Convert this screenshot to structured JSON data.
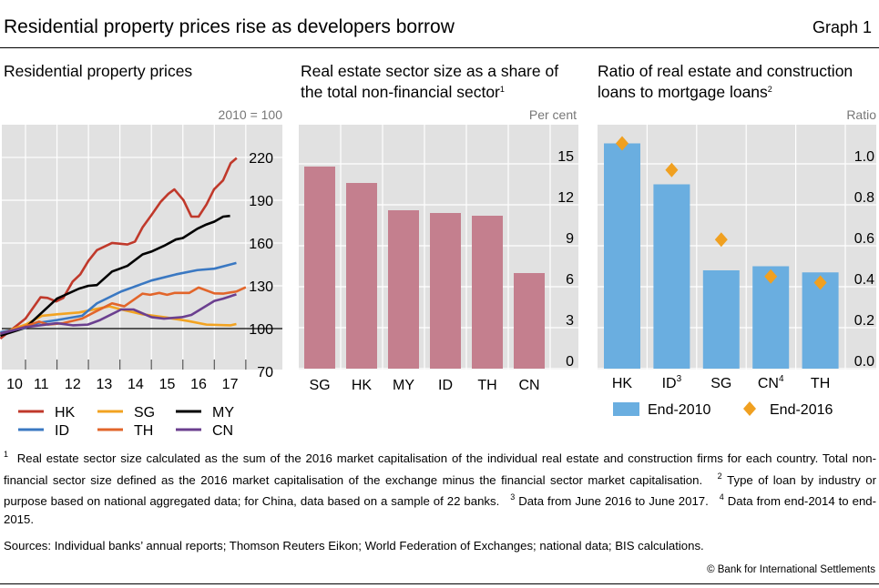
{
  "header": {
    "title": "Residential property prices rise as developers borrow",
    "graph_number": "Graph 1"
  },
  "colors": {
    "plot_bg": "#e1e1e1",
    "grid": "#ffffff",
    "HK": "#c0392b",
    "ID": "#3a78c2",
    "SG": "#f2a321",
    "TH": "#e2652a",
    "MY": "#000000",
    "CN": "#6b3f8f",
    "bar_mid": "#c47f8e",
    "bar_right": "#6aaee0",
    "diamond": "#f0a020"
  },
  "chart_data": [
    {
      "type": "line",
      "title": "Residential property prices",
      "unit": "2010 = 100",
      "xlabel": "",
      "ylabel": "2010 = 100",
      "ylim": [
        70,
        243
      ],
      "yticks": [
        "70",
        "100",
        "130",
        "160",
        "190",
        "220"
      ],
      "xticks": [
        "10",
        "11",
        "12",
        "13",
        "14",
        "15",
        "16",
        "17"
      ],
      "legend": "bottom",
      "series": [
        {
          "name": "HK",
          "x": [
            2010.2,
            2011.0,
            2011.48,
            2011.7,
            2011.97,
            2012.2,
            2012.5,
            2012.74,
            2013.0,
            2013.27,
            2013.75,
            2014.24,
            2014.48,
            2014.72,
            2015.0,
            2015.3,
            2015.54,
            2015.73,
            2016.02,
            2016.27,
            2016.5,
            2016.75,
            2016.99,
            2017.28,
            2017.52,
            2017.71
          ],
          "y": [
            93,
            107,
            122,
            121.5,
            119,
            121.5,
            133,
            138,
            147.5,
            155,
            160,
            159,
            161,
            171,
            179.5,
            189,
            194.5,
            197.6,
            190,
            178.5,
            178.5,
            187,
            197.6,
            204,
            216,
            219.6
          ]
        },
        {
          "name": "SG",
          "x": [
            2010.2,
            2011.0,
            2011.53,
            2012.0,
            2012.7,
            2013.66,
            2014.04,
            2014.72,
            2015.4,
            2016.17,
            2016.75,
            2017.52,
            2017.7
          ],
          "y": [
            96.4,
            102.8,
            109,
            110,
            111.3,
            115.6,
            113.4,
            110,
            108,
            105.3,
            102.8,
            102.3,
            103.2
          ]
        },
        {
          "name": "MY",
          "x": [
            2010.2,
            2011.0,
            2012.0,
            2012.7,
            2013.0,
            2013.27,
            2013.75,
            2014.24,
            2014.72,
            2015.0,
            2015.4,
            2015.78,
            2016.0,
            2016.46,
            2016.75,
            2017.0,
            2017.28,
            2017.5
          ],
          "y": [
            95,
            100.6,
            121,
            128,
            130,
            130.5,
            140,
            144,
            152,
            154,
            158,
            162.5,
            163.5,
            170,
            173,
            175,
            178.5,
            179
          ]
        },
        {
          "name": "ID",
          "x": [
            2010.2,
            2011.0,
            2011.4,
            2012.0,
            2012.8,
            2013.27,
            2014.04,
            2015.0,
            2015.78,
            2016.46,
            2017.0,
            2017.7
          ],
          "y": [
            97.4,
            100.6,
            104,
            106,
            109,
            117.7,
            126,
            133.7,
            138,
            141,
            142,
            146
          ]
        },
        {
          "name": "TH",
          "x": [
            2010.2,
            2011.0,
            2011.43,
            2011.72,
            2012.2,
            2012.8,
            2013.27,
            2013.75,
            2014.14,
            2014.72,
            2014.96,
            2015.25,
            2015.5,
            2015.73,
            2016.2,
            2016.5,
            2017.0,
            2017.28,
            2017.7,
            2018.0
          ],
          "y": [
            96.4,
            101.7,
            104.9,
            102.8,
            103.8,
            107,
            112.4,
            117.7,
            115.6,
            124.5,
            123.7,
            125,
            123.7,
            125,
            125,
            128.8,
            124.7,
            124.5,
            126,
            129
          ]
        },
        {
          "name": "CN",
          "x": [
            2010.2,
            2011.0,
            2012.0,
            2012.5,
            2012.98,
            2013.37,
            2014.04,
            2014.43,
            2015.0,
            2015.4,
            2015.97,
            2016.27,
            2017.0,
            2017.28,
            2017.7
          ],
          "y": [
            96.4,
            101,
            103.8,
            102.3,
            102.8,
            106,
            113.4,
            113.4,
            108,
            107,
            108,
            109.6,
            119.4,
            121,
            124
          ]
        }
      ]
    },
    {
      "type": "bar",
      "title": "Real estate sector size as a share of the total non-financial sector",
      "title_sup": "1",
      "unit": "Per cent",
      "categories": [
        "SG",
        "HK",
        "MY",
        "ID",
        "TH",
        "CN"
      ],
      "values": [
        14.8,
        13.6,
        11.6,
        11.4,
        11.2,
        7.0
      ],
      "ylim": [
        0,
        17.9
      ],
      "yticks": [
        "0",
        "3",
        "6",
        "9",
        "12",
        "15"
      ]
    },
    {
      "type": "bar",
      "title": "Ratio of real estate and construction loans to mortgage loans",
      "title_sup": "2",
      "unit": "Ratio",
      "categories": [
        "HK",
        "ID",
        "SG",
        "CN",
        "TH"
      ],
      "category_sups": [
        "",
        "3",
        "",
        "4",
        ""
      ],
      "ylim": [
        0,
        1.2
      ],
      "yticks": [
        "0.0",
        "0.2",
        "0.4",
        "0.6",
        "0.8",
        "1.0"
      ],
      "series": [
        {
          "name": "End-2010",
          "type": "bar",
          "values": [
            1.1,
            0.9,
            0.48,
            0.5,
            0.47
          ]
        },
        {
          "name": "End-2016",
          "type": "scatter",
          "marker": "diamond",
          "values": [
            1.1,
            0.97,
            0.63,
            0.45,
            0.42
          ]
        }
      ],
      "legend": "bottom"
    }
  ],
  "footnotes": {
    "n1": "1",
    "t1": "Real estate sector size calculated as the sum of the 2016 market capitalisation of the individual real estate and construction firms for each country. Total non-financial sector size defined as the 2016 market capitalisation of the exchange minus the financial sector market capitalisation.",
    "n2": "2",
    "t2": "Type of loan by industry or purpose based on national aggregated data; for China, data based on a sample of 22 banks.",
    "n3": "3",
    "t3": "Data from June 2016 to June 2017.",
    "n4": "4",
    "t4": "Data from end-2014 to end-2015."
  },
  "sources": "Sources: Individual banks’ annual reports; Thomson Reuters Eikon; World Federation of Exchanges; national data; BIS calculations.",
  "copyright": "© Bank for International Settlements"
}
